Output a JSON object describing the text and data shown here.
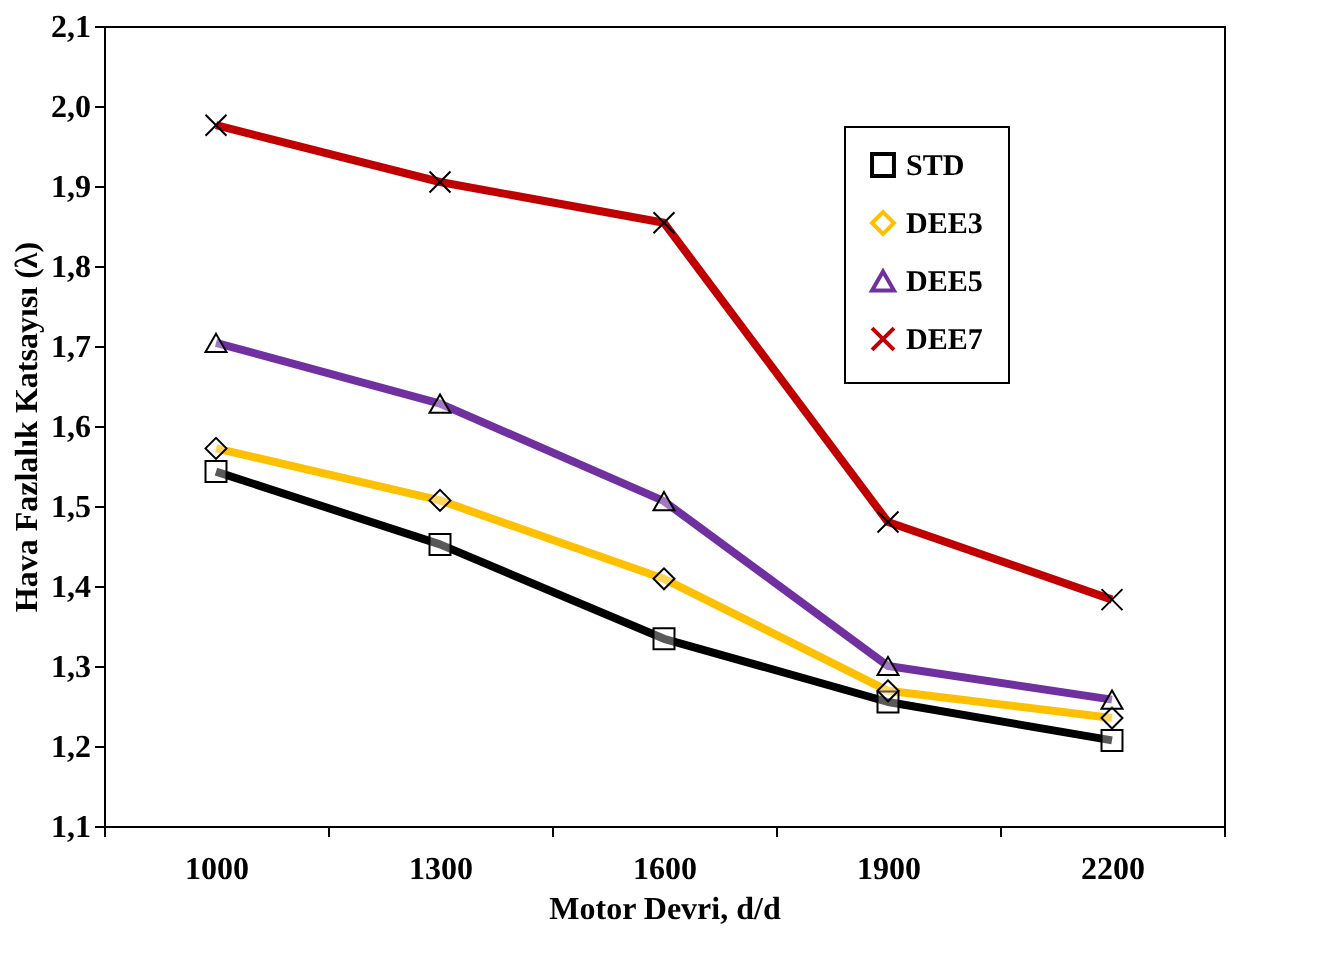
{
  "chart_data": {
    "type": "line",
    "xlabel": "Motor Devri, d/d",
    "ylabel": "Hava Fazlalık Katsayısı (λ)",
    "categories": [
      "1000",
      "1300",
      "1600",
      "1900",
      "2200"
    ],
    "series": [
      {
        "name": "STD",
        "color": "#000000",
        "marker": "square",
        "values": [
          1.543,
          1.452,
          1.334,
          1.255,
          1.207
        ]
      },
      {
        "name": "DEE3",
        "color": "#ffc000",
        "marker": "diamond",
        "values": [
          1.572,
          1.507,
          1.409,
          1.269,
          1.235
        ]
      },
      {
        "name": "DEE5",
        "color": "#7030a0",
        "marker": "triangle",
        "values": [
          1.704,
          1.628,
          1.506,
          1.3,
          1.258
        ]
      },
      {
        "name": "DEE7",
        "color": "#c00000",
        "marker": "cross",
        "values": [
          1.976,
          1.905,
          1.854,
          1.48,
          1.383
        ]
      }
    ],
    "ylim": [
      1.1,
      2.1
    ],
    "yticks": [
      {
        "value": 1.1,
        "label": "1,1"
      },
      {
        "value": 1.2,
        "label": "1,2"
      },
      {
        "value": 1.3,
        "label": "1,3"
      },
      {
        "value": 1.4,
        "label": "1,4"
      },
      {
        "value": 1.5,
        "label": "1,5"
      },
      {
        "value": 1.6,
        "label": "1,6"
      },
      {
        "value": 1.7,
        "label": "1,7"
      },
      {
        "value": 1.8,
        "label": "1,8"
      },
      {
        "value": 1.9,
        "label": "1,9"
      },
      {
        "value": 2.0,
        "label": "2,0"
      },
      {
        "value": 2.1,
        "label": "2,1"
      }
    ],
    "grid": false,
    "legend": "top right",
    "line_style": "solid"
  }
}
